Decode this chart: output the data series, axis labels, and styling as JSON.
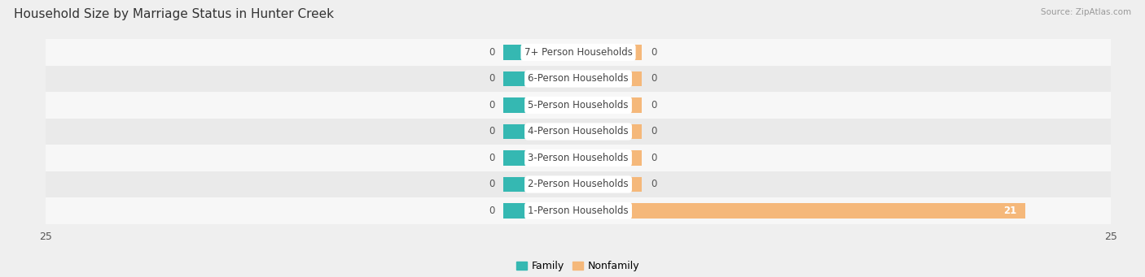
{
  "title": "Household Size by Marriage Status in Hunter Creek",
  "source": "Source: ZipAtlas.com",
  "categories": [
    "7+ Person Households",
    "6-Person Households",
    "5-Person Households",
    "4-Person Households",
    "3-Person Households",
    "2-Person Households",
    "1-Person Households"
  ],
  "family_values": [
    0,
    0,
    0,
    0,
    0,
    0,
    0
  ],
  "nonfamily_values": [
    0,
    0,
    0,
    0,
    0,
    0,
    21
  ],
  "family_color": "#35b8b2",
  "nonfamily_color": "#f5b87a",
  "xlim": 25,
  "family_stub": 3.5,
  "nonfamily_stub": 3.0,
  "bar_height": 0.58,
  "bg_color": "#efefef",
  "row_colors": [
    "#f7f7f7",
    "#eaeaea"
  ],
  "label_fontsize": 8.5,
  "title_fontsize": 11,
  "source_fontsize": 7.5,
  "tick_fontsize": 9,
  "legend_fontsize": 9,
  "value_color": "#555555",
  "label_text_color": "#444444"
}
